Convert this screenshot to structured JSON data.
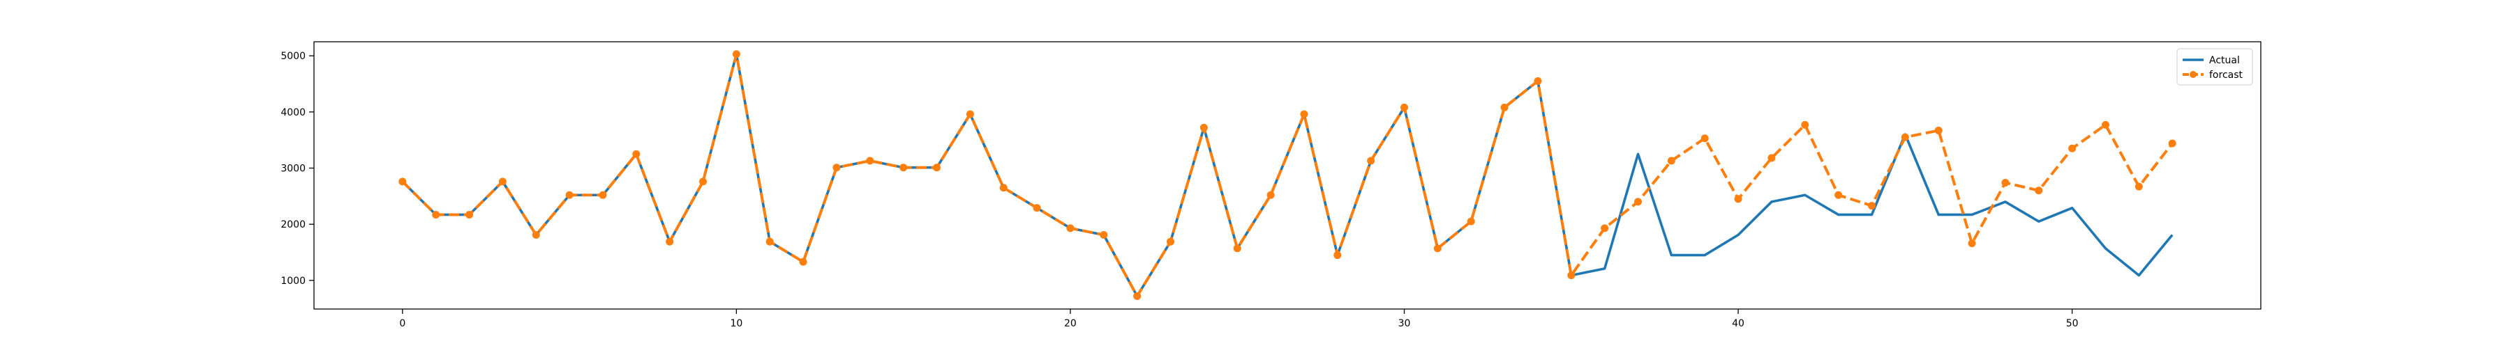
{
  "chart_data": {
    "type": "line",
    "title": "",
    "xlabel": "",
    "ylabel": "",
    "xlim": [
      -2.65,
      55.65
    ],
    "ylim": [
      490,
      5250
    ],
    "xticks": [
      0,
      10,
      20,
      30,
      40,
      50
    ],
    "yticks": [
      1000,
      2000,
      3000,
      4000,
      5000
    ],
    "grid": false,
    "legend_position": "top-right",
    "series": [
      {
        "name": "Actual",
        "color": "#1f77b4",
        "style": "solid",
        "marker": "none",
        "x": [
          0,
          1,
          2,
          3,
          4,
          5,
          6,
          7,
          8,
          9,
          10,
          11,
          12,
          13,
          14,
          15,
          16,
          17,
          18,
          19,
          20,
          21,
          22,
          23,
          24,
          25,
          26,
          27,
          28,
          29,
          30,
          31,
          32,
          33,
          34,
          35,
          36,
          37,
          38,
          39,
          40,
          41,
          42,
          43,
          44,
          45,
          46,
          47,
          48,
          49,
          50,
          51,
          52,
          53
        ],
        "values": [
          2760,
          2170,
          2170,
          2760,
          1810,
          2520,
          2520,
          3250,
          1690,
          2760,
          5030,
          1690,
          1330,
          3010,
          3130,
          3010,
          3010,
          3960,
          2650,
          2290,
          1930,
          1810,
          720,
          1690,
          3720,
          1570,
          2520,
          3960,
          1450,
          3130,
          4080,
          1570,
          2050,
          4080,
          4550,
          1090,
          1210,
          3250,
          1450,
          1450,
          1810,
          2400,
          2520,
          2170,
          2170,
          3600,
          2170,
          2170,
          2400,
          2050,
          2290,
          1570,
          1090,
          1810
        ]
      },
      {
        "name": "forcast",
        "color": "#ff7f0e",
        "style": "dashed",
        "marker": "circle",
        "x": [
          0,
          1,
          2,
          3,
          4,
          5,
          6,
          7,
          8,
          9,
          10,
          11,
          12,
          13,
          14,
          15,
          16,
          17,
          18,
          19,
          20,
          21,
          22,
          23,
          24,
          25,
          26,
          27,
          28,
          29,
          30,
          31,
          32,
          33,
          34,
          35,
          36,
          37,
          38,
          39,
          40,
          41,
          42,
          43,
          44,
          45,
          46,
          47,
          48,
          49,
          50,
          51,
          52,
          53
        ],
        "values": [
          2760,
          2170,
          2170,
          2760,
          1810,
          2520,
          2520,
          3250,
          1690,
          2760,
          5030,
          1690,
          1330,
          3010,
          3130,
          3010,
          3010,
          3960,
          2650,
          2290,
          1930,
          1810,
          720,
          1690,
          3720,
          1570,
          2520,
          3960,
          1450,
          3130,
          4080,
          1570,
          2050,
          4080,
          4550,
          1090,
          1930,
          2400,
          3130,
          3530,
          2450,
          3180,
          3770,
          2520,
          2330,
          3550,
          3670,
          1660,
          2740,
          2600,
          3350,
          3770,
          2670,
          3440
        ]
      }
    ]
  }
}
